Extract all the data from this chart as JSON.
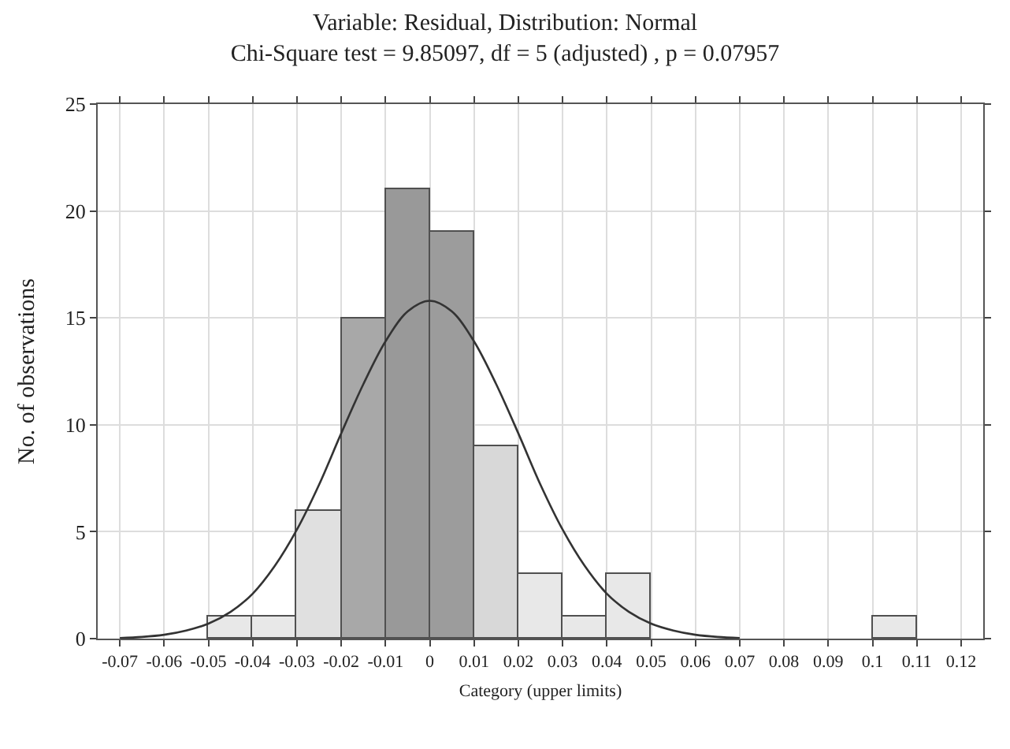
{
  "chart_data": {
    "type": "histogram",
    "title": "Variable: Residual, Distribution: Normal",
    "subtitle": "Chi-Square test = 9.85097, df = 5 (adjusted) , p = 0.07957",
    "xlabel": "Category (upper limits)",
    "ylabel": "No. of observations",
    "bins": [
      -0.07,
      -0.06,
      -0.05,
      -0.04,
      -0.03,
      -0.02,
      -0.01,
      0,
      0.01,
      0.02,
      0.03,
      0.04,
      0.05,
      0.06,
      0.07,
      0.08,
      0.09,
      0.1,
      0.11,
      0.12
    ],
    "values": [
      0,
      0,
      1,
      1,
      6,
      15,
      21,
      19,
      9,
      3,
      1,
      3,
      0,
      0,
      0,
      0,
      0,
      1,
      0
    ],
    "colors": [
      "#e8e8e8",
      "#e8e8e8",
      "#e8e8e8",
      "#e8e8e8",
      "#e0e0e0",
      "#a8a8a8",
      "#999999",
      "#9c9c9c",
      "#d8d8d8",
      "#e8e8e8",
      "#e8e8e8",
      "#e8e8e8",
      "#e8e8e8",
      "#e8e8e8",
      "#e8e8e8",
      "#e8e8e8",
      "#e8e8e8",
      "#e8e8e8",
      "#e8e8e8"
    ],
    "series": [
      {
        "type": "line",
        "color": "#333333",
        "x": [
          -0.07,
          -0.065,
          -0.06,
          -0.055,
          -0.05,
          -0.045,
          -0.04,
          -0.035,
          -0.03,
          -0.025,
          -0.02,
          -0.015,
          -0.01,
          -0.005,
          0,
          0.005,
          0.01,
          0.015,
          0.02,
          0.025,
          0.03,
          0.035,
          0.04,
          0.045,
          0.05,
          0.055,
          0.06,
          0.065,
          0.07
        ],
        "values": [
          0.03,
          0.08,
          0.18,
          0.38,
          0.7,
          1.25,
          2.1,
          3.4,
          5.1,
          7.2,
          9.6,
          11.9,
          13.9,
          15.3,
          15.8,
          15.3,
          13.9,
          11.9,
          9.6,
          7.2,
          5.1,
          3.4,
          2.1,
          1.25,
          0.7,
          0.38,
          0.18,
          0.08,
          0.03
        ]
      }
    ],
    "xlim": [
      -0.075,
      0.125
    ],
    "xticks": [
      -0.07,
      -0.06,
      -0.05,
      -0.04,
      -0.03,
      -0.02,
      -0.01,
      0,
      0.01,
      0.02,
      0.03,
      0.04,
      0.05,
      0.06,
      0.07,
      0.08,
      0.09,
      0.1,
      0.11,
      0.12
    ],
    "ylim": [
      0,
      25
    ],
    "yticks": [
      0,
      5,
      10,
      15,
      20,
      25
    ],
    "grid": true
  }
}
